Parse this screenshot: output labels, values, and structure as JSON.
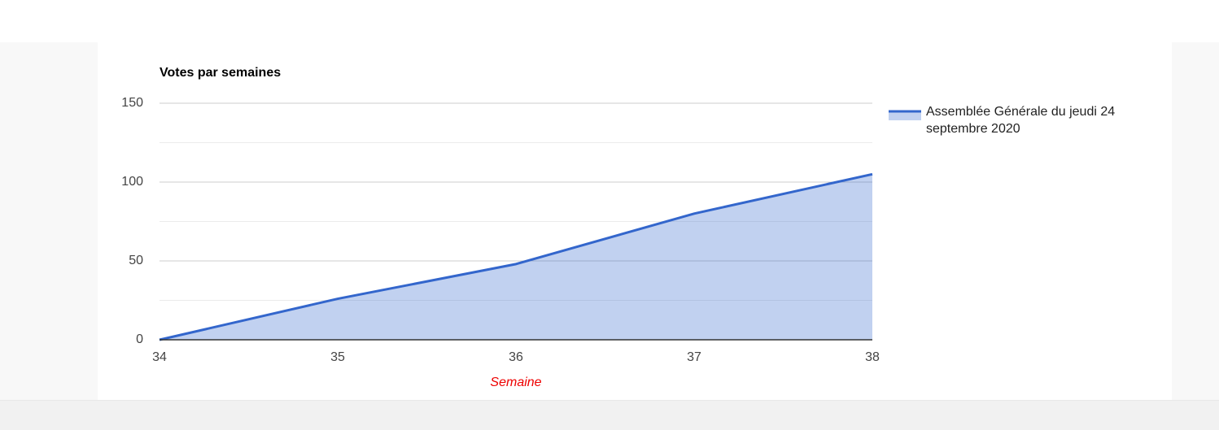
{
  "chart_data": {
    "type": "area",
    "title": "Votes par semaines",
    "x_label": "Semaine",
    "x": [
      34,
      35,
      36,
      37,
      38
    ],
    "series": [
      {
        "name": "Assemblée Générale du jeudi 24 septembre 2020",
        "color": "#3366cc",
        "values": [
          0,
          26,
          48,
          80,
          105
        ]
      }
    ],
    "xlim": [
      34,
      38
    ],
    "xticks": [
      34,
      35,
      36,
      37,
      38
    ],
    "ylim": [
      0,
      150
    ],
    "yticks": [
      0,
      50,
      100,
      150
    ],
    "minor_yticks": [
      25,
      75,
      125
    ],
    "grid": true,
    "legend": "right"
  }
}
